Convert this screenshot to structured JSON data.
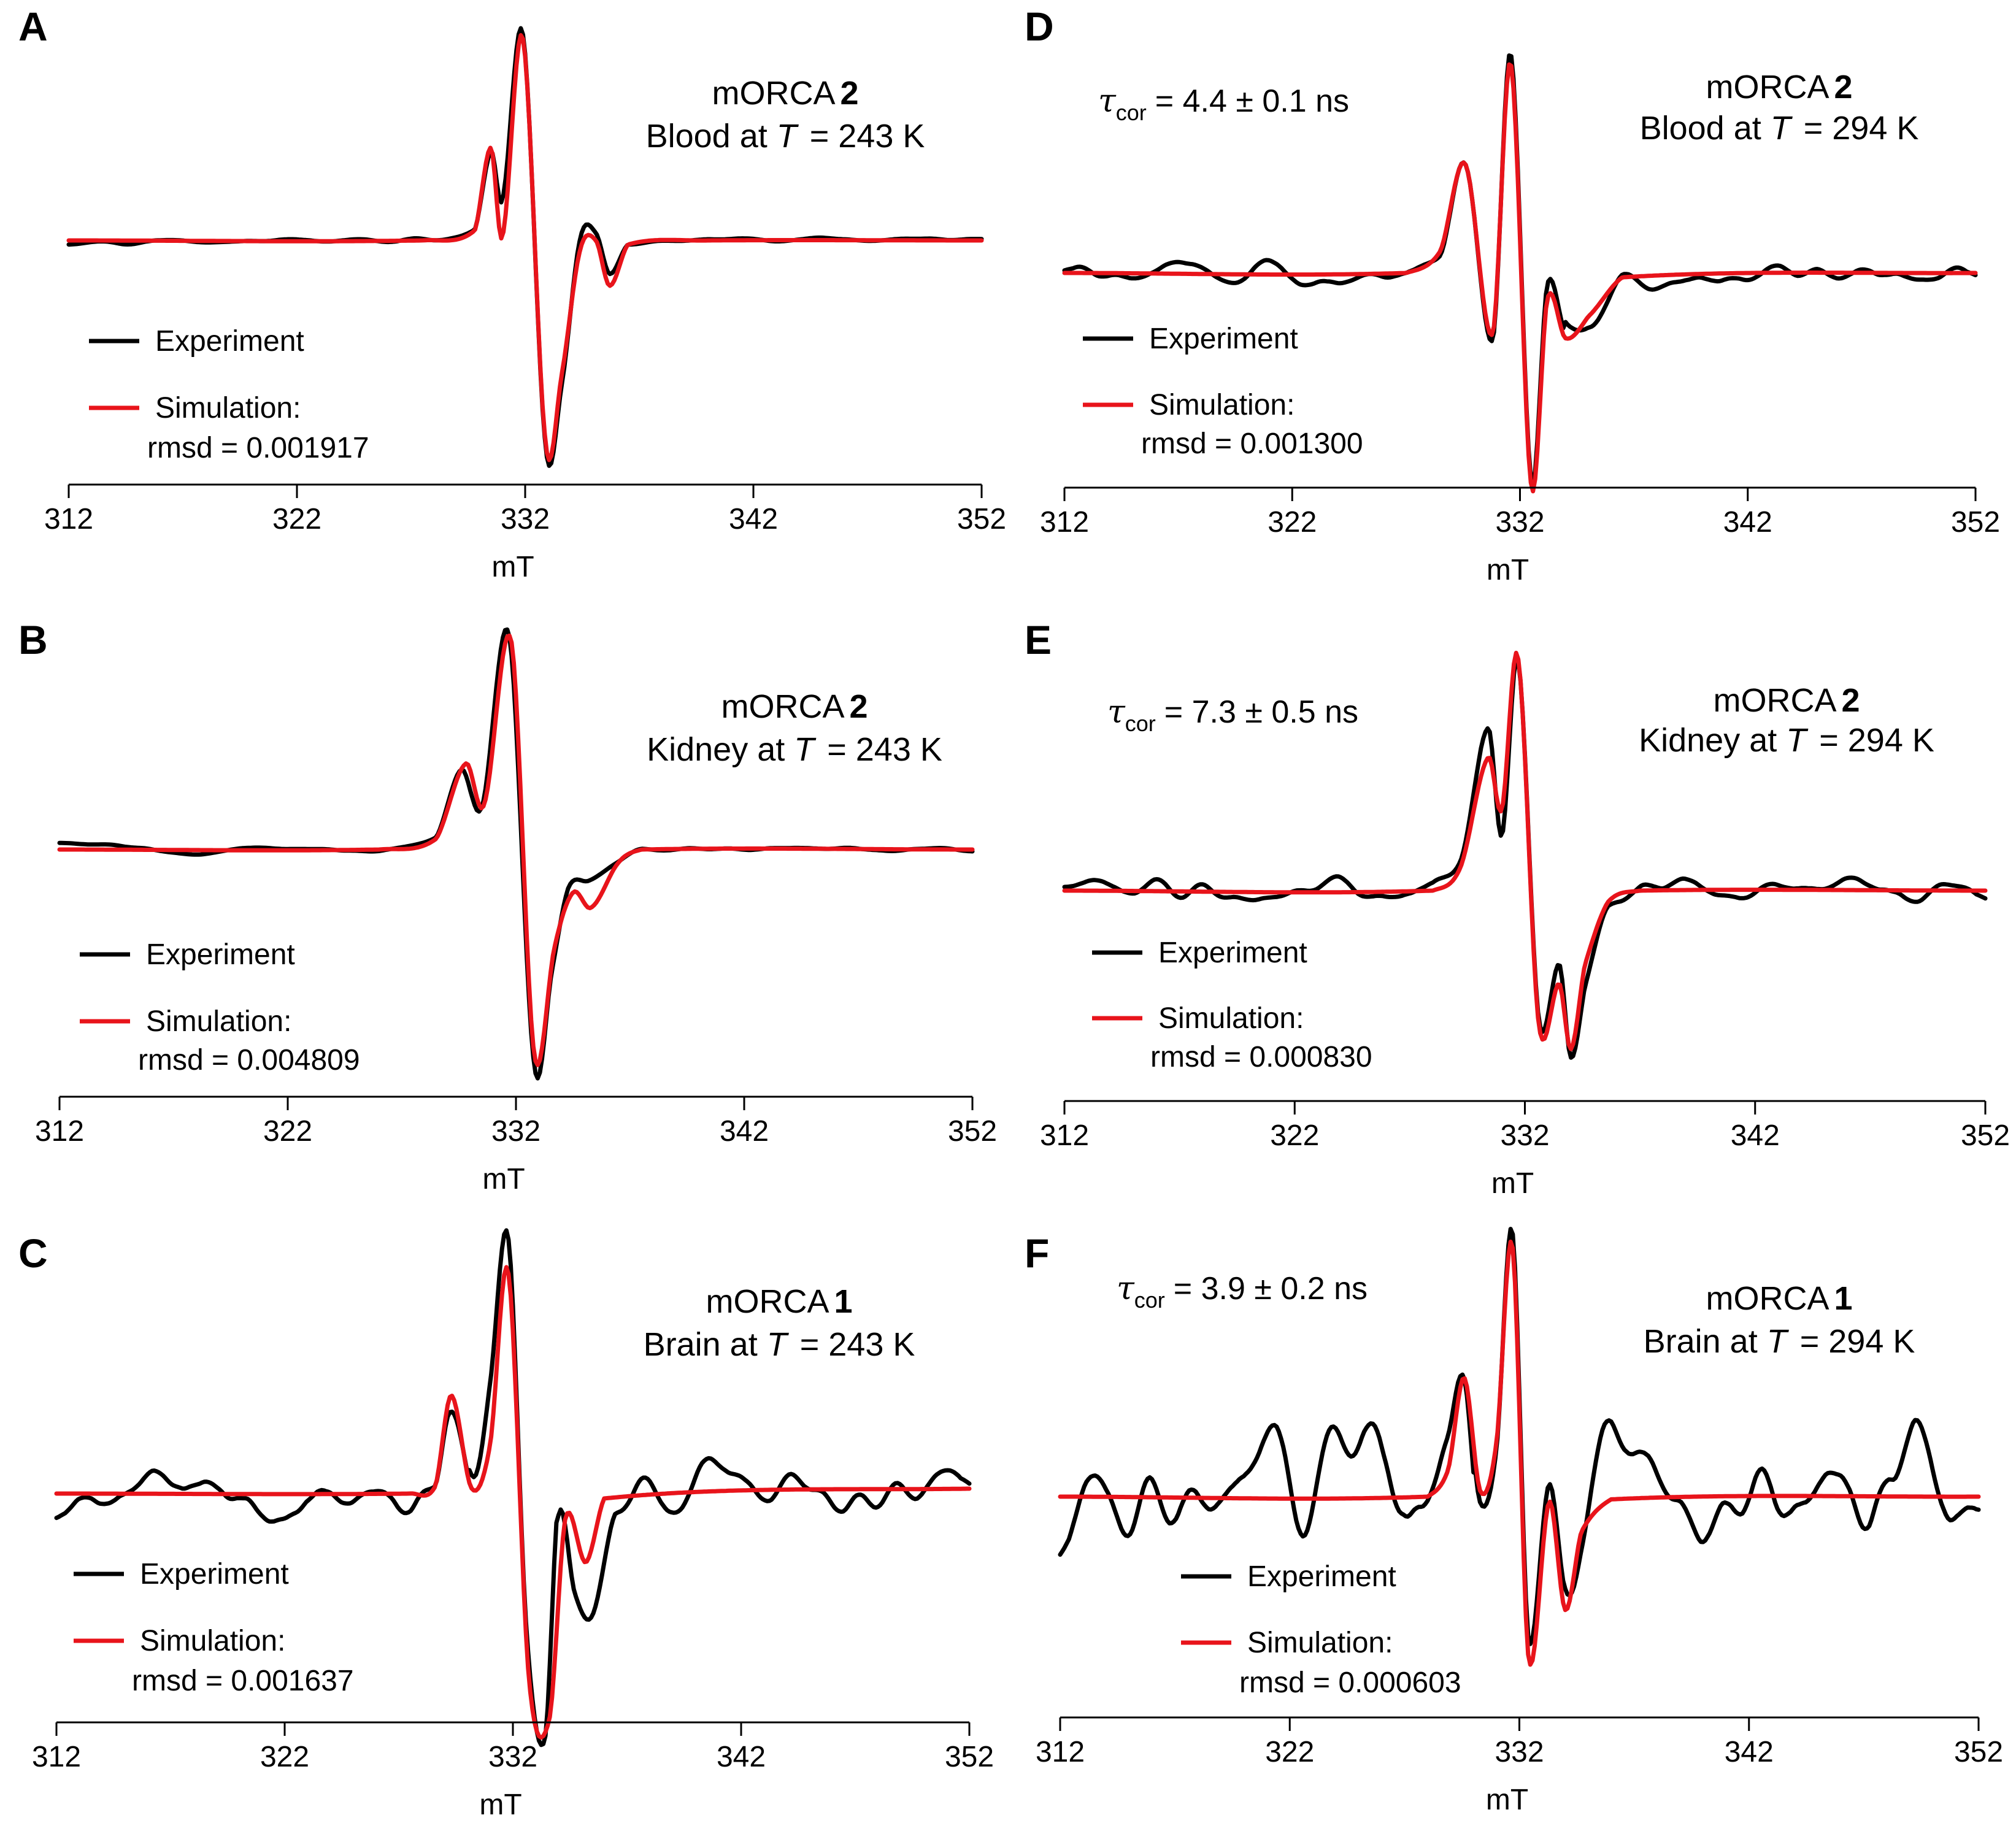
{
  "figure": {
    "x_unit": "mT",
    "legend": {
      "experiment": "Experiment",
      "simulation": "Simulation:"
    },
    "colors": {
      "experiment": "#000000",
      "simulation": "#e8141b",
      "axis": "#000000"
    }
  },
  "chart_data": [
    {
      "panel": "A",
      "type": "line",
      "compound_name": "mORCA",
      "compound_number": "2",
      "sample_prefix": "Blood at ",
      "temp_symbol": "T",
      "temp_value": "= 243 K",
      "tau": null,
      "rmsd": "rmsd = 0.001917",
      "xlabel": "mT",
      "xlim": [
        312,
        352
      ],
      "x_ticks": [
        "312",
        "322",
        "332",
        "342",
        "352"
      ],
      "ylim": [
        -1,
        1
      ],
      "y0": 0,
      "series": [
        {
          "name": "Experiment",
          "color": "#000000",
          "noise": 0.02,
          "x": [
            312,
            327.0,
            329.8,
            330.5,
            331.0,
            331.9,
            332.9,
            333.6,
            334.4,
            335.1,
            335.7,
            336.5,
            340,
            352
          ],
          "y": [
            0,
            0,
            0.05,
            0.43,
            0.2,
            1.0,
            -1.0,
            -0.7,
            0.0,
            0.03,
            -0.17,
            -0.02,
            0,
            0
          ]
        },
        {
          "name": "Simulation",
          "color": "#e8141b",
          "noise": 0,
          "x": [
            312,
            327.5,
            329.8,
            330.5,
            331.0,
            331.9,
            332.9,
            333.6,
            334.4,
            335.1,
            335.7,
            336.5,
            340,
            352
          ],
          "y": [
            0,
            0,
            0.05,
            0.45,
            0.02,
            0.98,
            -0.98,
            -0.65,
            -0.05,
            0.0,
            -0.22,
            -0.02,
            0,
            0
          ]
        }
      ]
    },
    {
      "panel": "B",
      "type": "line",
      "compound_name": "mORCA",
      "compound_number": "2",
      "sample_prefix": "Kidney at ",
      "temp_symbol": "T",
      "temp_value": "= 243 K",
      "tau": null,
      "rmsd": "rmsd = 0.004809",
      "xlabel": "mT",
      "xlim": [
        312,
        352
      ],
      "x_ticks": [
        "312",
        "322",
        "332",
        "342",
        "352"
      ],
      "ylim": [
        -1,
        1
      ],
      "y0": 0,
      "series": [
        {
          "name": "Experiment",
          "color": "#000000",
          "noise": 0.015,
          "x": [
            312,
            314.5,
            318,
            320,
            326,
            328.5,
            329.6,
            330.5,
            331.7,
            332.8,
            333.6,
            334.3,
            335.2,
            336.5,
            337.5,
            352
          ],
          "y": [
            0.02,
            0.02,
            -0.02,
            0.0,
            0,
            0.07,
            0.38,
            0.2,
            1.0,
            -1.0,
            -0.55,
            -0.18,
            -0.14,
            -0.05,
            0,
            0
          ]
        },
        {
          "name": "Simulation",
          "color": "#e8141b",
          "noise": 0,
          "x": [
            312,
            326,
            328.5,
            329.8,
            330.6,
            331.8,
            332.8,
            333.7,
            334.5,
            335.3,
            336.5,
            337.5,
            352
          ],
          "y": [
            0,
            0,
            0.05,
            0.4,
            0.21,
            0.97,
            -0.95,
            -0.45,
            -0.2,
            -0.27,
            -0.06,
            0,
            0
          ]
        }
      ]
    },
    {
      "panel": "C",
      "type": "line",
      "compound_name": "mORCA",
      "compound_number": "1",
      "sample_prefix": "Brain at ",
      "temp_symbol": "T",
      "temp_value": "= 243 K",
      "tau": null,
      "rmsd": "rmsd = 0.001637",
      "xlabel": "mT",
      "xlim": [
        312,
        352
      ],
      "x_ticks": [
        "312",
        "322",
        "332",
        "342",
        "352"
      ],
      "ylim": [
        -1,
        1
      ],
      "y0": 0,
      "series": [
        {
          "name": "Experiment",
          "color": "#000000",
          "noise": 0.16,
          "x": [
            312,
            327.5,
            328.6,
            329.2,
            330.3,
            331.0,
            331.8,
            332.6,
            333.4,
            334.0,
            334.7,
            335.5,
            336.5,
            352
          ],
          "y": [
            0,
            0,
            0.12,
            0.38,
            0.1,
            0.45,
            1.0,
            -0.6,
            -0.98,
            0.02,
            -0.25,
            -0.35,
            0.0,
            0
          ]
        },
        {
          "name": "Simulation",
          "color": "#e8141b",
          "noise": 0,
          "x": [
            312,
            327.5,
            328.6,
            329.3,
            330.2,
            331.0,
            331.8,
            332.7,
            333.6,
            334.3,
            335.2,
            336.0,
            352
          ],
          "y": [
            0,
            0,
            0.03,
            0.4,
            0.02,
            0.2,
            0.9,
            -0.75,
            -0.92,
            -0.1,
            -0.28,
            -0.02,
            0.02
          ]
        }
      ]
    },
    {
      "panel": "D",
      "type": "line",
      "compound_name": "mORCA",
      "compound_number": "2",
      "sample_prefix": "Blood at ",
      "temp_symbol": "T",
      "temp_value": "= 294 K",
      "tau": "= 4.4 ± 0.1 ns",
      "rmsd": "rmsd = 0.001300",
      "xlabel": "mT",
      "xlim": [
        312,
        352
      ],
      "x_ticks": [
        "312",
        "322",
        "332",
        "342",
        "352"
      ],
      "ylim": [
        -1,
        1
      ],
      "y0": 0,
      "series": [
        {
          "name": "Experiment",
          "color": "#000000",
          "noise": 0.09,
          "x": [
            312,
            327.0,
            328.5,
            329.6,
            330.8,
            331.6,
            332.5,
            333.2,
            334.0,
            335.0,
            336.5,
            352
          ],
          "y": [
            0,
            0,
            0.12,
            0.52,
            -0.32,
            1.0,
            -0.95,
            -0.08,
            -0.3,
            -0.22,
            -0.02,
            0
          ]
        },
        {
          "name": "Simulation",
          "color": "#e8141b",
          "noise": 0,
          "x": [
            312,
            327.0,
            328.5,
            329.6,
            330.8,
            331.6,
            332.5,
            333.2,
            334.0,
            335.0,
            336.5,
            352
          ],
          "y": [
            0,
            0,
            0.1,
            0.5,
            -0.28,
            0.96,
            -0.98,
            -0.12,
            -0.3,
            -0.2,
            -0.02,
            0
          ]
        }
      ]
    },
    {
      "panel": "E",
      "type": "line",
      "compound_name": "mORCA",
      "compound_number": "2",
      "sample_prefix": "Kidney at ",
      "temp_symbol": "T",
      "temp_value": "= 294 K",
      "tau": "= 7.3 ± 0.5 ns",
      "rmsd": "rmsd = 0.000830",
      "xlabel": "mT",
      "xlim": [
        312,
        352
      ],
      "x_ticks": [
        "312",
        "322",
        "332",
        "342",
        "352"
      ],
      "ylim": [
        -1,
        1
      ],
      "y0": 0,
      "series": [
        {
          "name": "Experiment",
          "color": "#000000",
          "noise": 0.07,
          "x": [
            312,
            328.0,
            329.2,
            330.4,
            331.0,
            331.7,
            332.6,
            333.5,
            334.0,
            334.6,
            335.6,
            337.0,
            352
          ],
          "y": [
            0,
            0,
            0.12,
            0.7,
            0.25,
            1.0,
            -0.55,
            -0.32,
            -0.72,
            -0.4,
            -0.06,
            0,
            0
          ]
        },
        {
          "name": "Simulation",
          "color": "#e8141b",
          "noise": 0,
          "x": [
            312,
            328.0,
            329.2,
            330.4,
            331.0,
            331.7,
            332.6,
            333.5,
            334.0,
            334.6,
            335.6,
            337.0,
            352
          ],
          "y": [
            0,
            0,
            0.1,
            0.57,
            0.35,
            1.0,
            -0.57,
            -0.4,
            -0.68,
            -0.32,
            -0.05,
            0,
            0
          ]
        }
      ]
    },
    {
      "panel": "F",
      "type": "line",
      "compound_name": "mORCA",
      "compound_number": "1",
      "sample_prefix": "Brain at ",
      "temp_symbol": "T",
      "temp_value": "= 294 K",
      "tau": "= 3.9 ± 0.2 ns",
      "rmsd": "rmsd = 0.000603",
      "xlabel": "mT",
      "xlim": [
        312,
        352
      ],
      "x_ticks": [
        "312",
        "322",
        "332",
        "342",
        "352"
      ],
      "ylim": [
        -1,
        1
      ],
      "y0": 0,
      "series": [
        {
          "name": "Experiment",
          "color": "#000000",
          "noise": 0.3,
          "x": [
            312,
            328.0,
            328.9,
            329.6,
            330.3,
            331.0,
            331.7,
            332.4,
            333.3,
            334.0,
            334.7,
            336.0,
            352
          ],
          "y": [
            0,
            0,
            0.12,
            0.46,
            0.03,
            0.2,
            1.0,
            -0.55,
            0.0,
            -0.35,
            -0.2,
            0.0,
            0
          ]
        },
        {
          "name": "Simulation",
          "color": "#e8141b",
          "noise": 0,
          "x": [
            312,
            328.0,
            328.9,
            329.6,
            330.3,
            331.0,
            331.7,
            332.4,
            333.3,
            334.0,
            334.7,
            336.0,
            352
          ],
          "y": [
            0,
            0,
            0.1,
            0.44,
            0.02,
            0.2,
            0.93,
            -0.6,
            -0.02,
            -0.42,
            -0.13,
            -0.01,
            0
          ]
        }
      ]
    }
  ]
}
